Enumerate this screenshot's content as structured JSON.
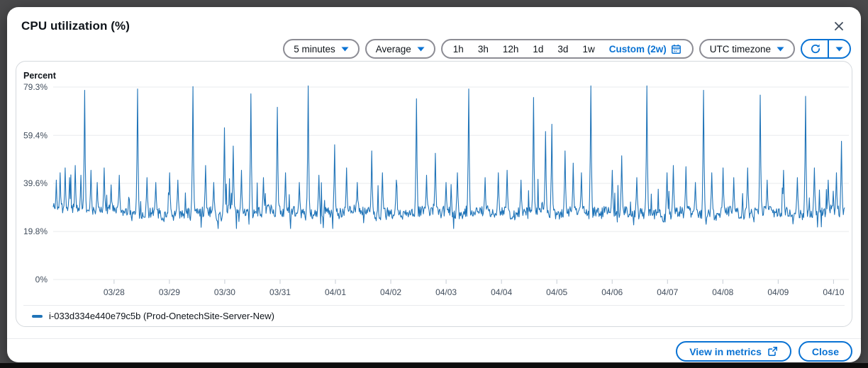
{
  "modal": {
    "title": "CPU utilization (%)"
  },
  "toolbar": {
    "period": {
      "label": "5 minutes"
    },
    "statistic": {
      "label": "Average"
    },
    "ranges": [
      "1h",
      "3h",
      "12h",
      "1d",
      "3d",
      "1w"
    ],
    "custom_range_label": "Custom (2w)",
    "timezone": {
      "label": "UTC timezone"
    }
  },
  "footer": {
    "view_in_metrics_label": "View in metrics",
    "close_label": "Close"
  },
  "colors": {
    "accent_blue": "#0972d3",
    "line_blue": "#2074b8",
    "grid": "#e9ebed",
    "axis_text": "#414d5c",
    "tick_mark": "#c6cdd5",
    "text": "#0f141a"
  },
  "chart_data": {
    "type": "line",
    "title": "CPU utilization (%)",
    "ylabel": "Percent",
    "ylim": [
      0,
      79.3
    ],
    "grid": true,
    "legend_position": "bottom-left",
    "y_ticks": [
      {
        "value": 79.3,
        "label": "79.3%"
      },
      {
        "value": 59.4,
        "label": "59.4%"
      },
      {
        "value": 39.6,
        "label": "39.6%"
      },
      {
        "value": 19.8,
        "label": "19.8%"
      },
      {
        "value": 0,
        "label": "0%"
      }
    ],
    "x_ticks": [
      "03/28",
      "03/29",
      "03/30",
      "03/31",
      "04/01",
      "04/02",
      "04/03",
      "04/04",
      "04/05",
      "04/06",
      "04/07",
      "04/08",
      "04/09",
      "04/10"
    ],
    "x_domain_days": 14.3,
    "first_tick_day": 1.1,
    "series": [
      {
        "name": "i-033d334e440e79c5b (Prod-OnetechSite-Server-New)",
        "color": "#2074b8",
        "baseline_mean": 27.5,
        "noise": 2.2,
        "points_per_day": 88,
        "seed": 11,
        "min_value": 21,
        "max_value": 79.8,
        "spikes": [
          [
            0.06,
            41
          ],
          [
            0.13,
            44
          ],
          [
            0.22,
            46
          ],
          [
            0.3,
            42
          ],
          [
            0.4,
            47
          ],
          [
            0.5,
            43
          ],
          [
            0.57,
            78
          ],
          [
            0.68,
            45
          ],
          [
            0.8,
            40
          ],
          [
            0.92,
            46
          ],
          [
            1.05,
            39
          ],
          [
            1.2,
            43
          ],
          [
            1.53,
            78.5
          ],
          [
            1.7,
            42
          ],
          [
            1.85,
            40
          ],
          [
            2.1,
            44
          ],
          [
            2.25,
            41
          ],
          [
            2.53,
            79.5
          ],
          [
            2.75,
            47
          ],
          [
            2.9,
            40
          ],
          [
            3.1,
            62.5
          ],
          [
            3.25,
            55
          ],
          [
            3.4,
            45
          ],
          [
            3.57,
            76.5
          ],
          [
            3.8,
            42
          ],
          [
            4.05,
            71
          ],
          [
            4.2,
            44
          ],
          [
            4.45,
            40
          ],
          [
            4.61,
            79.8
          ],
          [
            4.8,
            43
          ],
          [
            5.08,
            55.5
          ],
          [
            5.3,
            46
          ],
          [
            5.5,
            40
          ],
          [
            5.76,
            53
          ],
          [
            5.95,
            44
          ],
          [
            6.2,
            41
          ],
          [
            6.56,
            74.5
          ],
          [
            6.75,
            43
          ],
          [
            6.9,
            52
          ],
          [
            7.1,
            40
          ],
          [
            7.3,
            44
          ],
          [
            7.51,
            78.5
          ],
          [
            7.8,
            42
          ],
          [
            8.04,
            44
          ],
          [
            8.2,
            45
          ],
          [
            8.45,
            41
          ],
          [
            8.68,
            75
          ],
          [
            8.9,
            61
          ],
          [
            9.01,
            64
          ],
          [
            9.25,
            53
          ],
          [
            9.4,
            48
          ],
          [
            9.55,
            44
          ],
          [
            9.72,
            79.8
          ],
          [
            10.1,
            45
          ],
          [
            10.27,
            51
          ],
          [
            10.55,
            42
          ],
          [
            10.73,
            79.8
          ],
          [
            11.09,
            44
          ],
          [
            11.2,
            47
          ],
          [
            11.43,
            46.5
          ],
          [
            11.6,
            40
          ],
          [
            11.75,
            78
          ],
          [
            11.9,
            44
          ],
          [
            12.11,
            46
          ],
          [
            12.3,
            42
          ],
          [
            12.55,
            46
          ],
          [
            12.78,
            76
          ],
          [
            12.9,
            41
          ],
          [
            13.2,
            45
          ],
          [
            13.45,
            42
          ],
          [
            13.59,
            75.5
          ],
          [
            13.75,
            46
          ],
          [
            14.0,
            41
          ],
          [
            14.15,
            44
          ],
          [
            14.24,
            57
          ]
        ]
      }
    ]
  }
}
